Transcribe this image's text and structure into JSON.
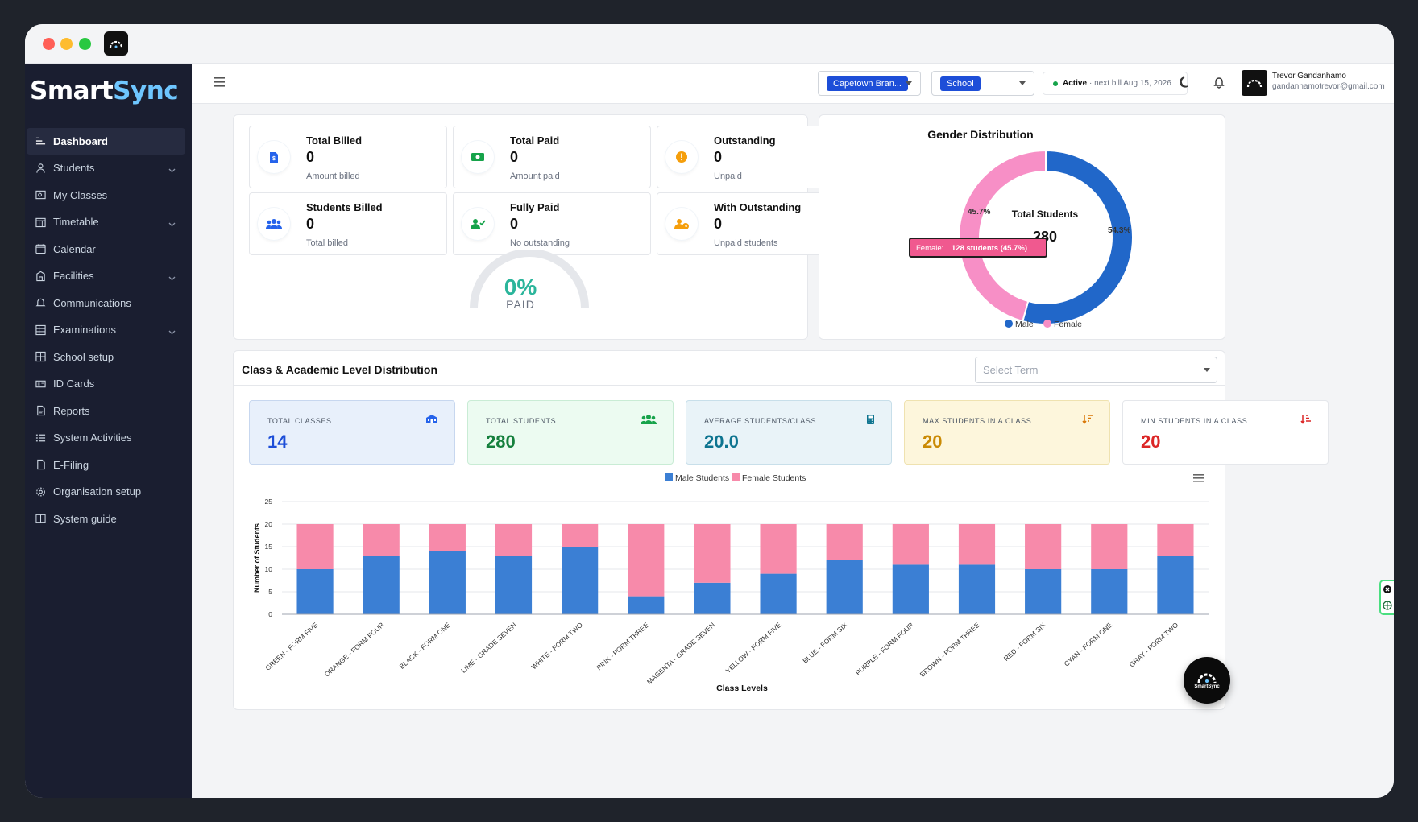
{
  "brand": {
    "name_a": "Smart",
    "name_b": "Sync"
  },
  "sidebar": {
    "items": [
      {
        "label": "Dashboard",
        "icon": "dashboard-icon",
        "active": true,
        "has_children": false
      },
      {
        "label": "Students",
        "icon": "user-icon",
        "has_children": true
      },
      {
        "label": "My Classes",
        "icon": "classes-icon",
        "has_children": false
      },
      {
        "label": "Timetable",
        "icon": "calendar-grid-icon",
        "has_children": true
      },
      {
        "label": "Calendar",
        "icon": "calendar-icon",
        "has_children": false
      },
      {
        "label": "Facilities",
        "icon": "building-icon",
        "has_children": true
      },
      {
        "label": "Communications",
        "icon": "bell-icon",
        "has_children": false
      },
      {
        "label": "Examinations",
        "icon": "table-icon",
        "has_children": true
      },
      {
        "label": "School setup",
        "icon": "grid-icon",
        "has_children": false
      },
      {
        "label": "ID Cards",
        "icon": "id-card-icon",
        "has_children": false
      },
      {
        "label": "Reports",
        "icon": "pdf-file-icon",
        "has_children": false
      },
      {
        "label": "System Activities",
        "icon": "list-icon",
        "has_children": false
      },
      {
        "label": "E-Filing",
        "icon": "file-icon",
        "has_children": false
      },
      {
        "label": "Organisation setup",
        "icon": "gear-icon",
        "has_children": false
      },
      {
        "label": "System guide",
        "icon": "book-icon",
        "has_children": false
      }
    ]
  },
  "topbar": {
    "branch_select": "Capetown Bran...",
    "type_select": "School",
    "status_label": "Active",
    "status_detail": "· next bill Aug 15, 2026",
    "user_name": "Trevor Gandanhamo",
    "user_email": "gandanhamotrevor@gmail.com"
  },
  "billing": {
    "tiles": [
      {
        "title": "Total Billed",
        "value": "0",
        "sub": "Amount billed",
        "icon": "invoice-icon",
        "color": "#2563eb"
      },
      {
        "title": "Total Paid",
        "value": "0",
        "sub": "Amount paid",
        "icon": "money-icon",
        "color": "#16a34a"
      },
      {
        "title": "Outstanding",
        "value": "0",
        "sub": "Unpaid",
        "icon": "alert-icon",
        "color": "#f59e0b"
      },
      {
        "title": "Students Billed",
        "value": "0",
        "sub": "Total billed",
        "icon": "users-icon",
        "color": "#2563eb"
      },
      {
        "title": "Fully Paid",
        "value": "0",
        "sub": "No outstanding",
        "icon": "user-check-icon",
        "color": "#16a34a"
      },
      {
        "title": "With Outstanding",
        "value": "0",
        "sub": "Unpaid students",
        "icon": "user-clock-icon",
        "color": "#f59e0b"
      }
    ],
    "gauge": {
      "percent_label": "0%",
      "caption": "PAID",
      "value": 0
    }
  },
  "gender": {
    "title": "Gender Distribution",
    "center_label": "Total Students",
    "center_value": "280",
    "tooltip_series": "Female:",
    "tooltip_value": "128 students (45.7%)",
    "pct_female": "45.7%",
    "pct_male": "54.3%",
    "legend": [
      {
        "label": "Male",
        "color": "#2167c9"
      },
      {
        "label": "Female",
        "color": "#f78fc6"
      }
    ]
  },
  "class_dist": {
    "title": "Class & Academic Level Distribution",
    "select_placeholder": "Select Term",
    "metrics": [
      {
        "label": "TOTAL CLASSES",
        "value": "14",
        "icon": "school-icon"
      },
      {
        "label": "TOTAL STUDENTS",
        "value": "280",
        "icon": "users-icon"
      },
      {
        "label": "AVERAGE STUDENTS/CLASS",
        "value": "20.0",
        "icon": "calculator-icon"
      },
      {
        "label": "MAX STUDENTS IN A CLASS",
        "value": "20",
        "icon": "sort-desc-icon"
      },
      {
        "label": "MIN STUDENTS IN A CLASS",
        "value": "20",
        "icon": "sort-asc-icon"
      }
    ]
  },
  "chart_data": [
    {
      "type": "pie",
      "title": "Gender Distribution",
      "labels": [
        "Male",
        "Female"
      ],
      "values": [
        152,
        128
      ],
      "percent": [
        54.3,
        45.7
      ],
      "colors": [
        "#2167c9",
        "#f78fc6"
      ],
      "legend": "bottom"
    },
    {
      "type": "bar",
      "stacked": true,
      "categories": [
        "GREEN - FORM FIVE",
        "ORANGE - FORM FOUR",
        "BLACK - FORM ONE",
        "LIME - GRADE SEVEN",
        "WHITE - FORM TWO",
        "PINK - FORM THREE",
        "MAGENTA - GRADE SEVEN",
        "YELLOW - FORM FIVE",
        "BLUE - FORM SIX",
        "PURPLE - FORM FOUR",
        "BROWN - FORM THREE",
        "RED - FORM SIX",
        "CYAN - FORM ONE",
        "GRAY - FORM TWO"
      ],
      "series": [
        {
          "name": "Male Students",
          "color": "#3b7fd4",
          "values": [
            10,
            13,
            14,
            13,
            15,
            4,
            7,
            9,
            12,
            11,
            11,
            10,
            10,
            13
          ]
        },
        {
          "name": "Female Students",
          "color": "#f78aaa",
          "values": [
            10,
            7,
            6,
            7,
            5,
            16,
            13,
            11,
            8,
            9,
            9,
            10,
            10,
            7
          ]
        }
      ],
      "xlabel": "Class Levels",
      "ylabel": "Number of Students",
      "ylim": [
        0,
        25
      ],
      "yticks": [
        0,
        5,
        10,
        15,
        20,
        25
      ],
      "grid": true,
      "legend": "top"
    }
  ],
  "fab": {
    "label": "SmartSync"
  }
}
